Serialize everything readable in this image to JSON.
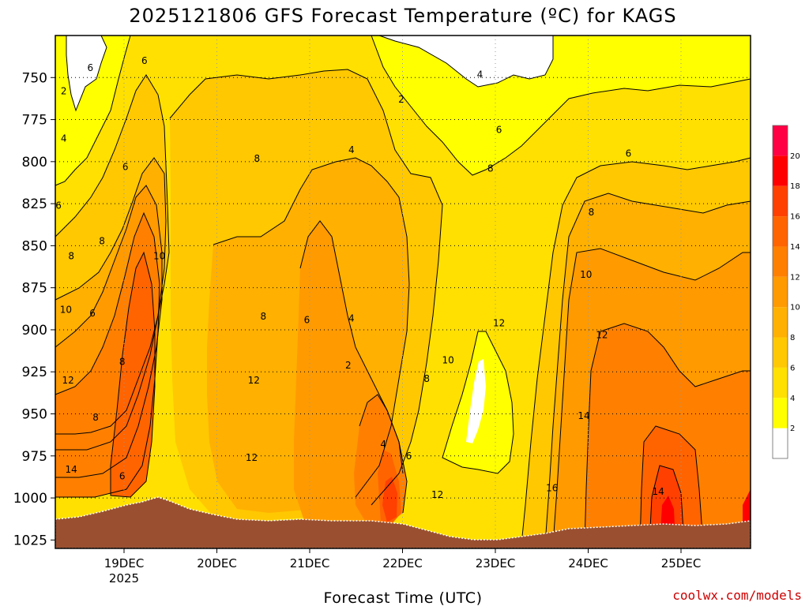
{
  "title": "2025121806 GFS Forecast Temperature (ºC) for KAGS",
  "credit": "coolwx.com/models",
  "colors": {
    "below_2": "#ffffff",
    "2_4": "#ffff00",
    "4_6": "#ffe000",
    "6_8": "#ffc800",
    "8_10": "#ffb000",
    "10_12": "#ff9a00",
    "12_14": "#ff8000",
    "14_16": "#ff6400",
    "16_18": "#ff4000",
    "18_20": "#ff0000",
    "20_plus": "#ff0044",
    "terrain": "#9a5030"
  },
  "chart_data": {
    "type": "contour",
    "title": "2025121806 GFS Forecast Temperature (ºC) for KAGS",
    "xlabel": "Forecast Time (UTC)",
    "ylabel": "",
    "x_ticks": [
      {
        "label": "19DEC",
        "sub": "2025"
      },
      {
        "label": "20DEC",
        "sub": ""
      },
      {
        "label": "21DEC",
        "sub": ""
      },
      {
        "label": "22DEC",
        "sub": ""
      },
      {
        "label": "23DEC",
        "sub": ""
      },
      {
        "label": "24DEC",
        "sub": ""
      },
      {
        "label": "25DEC",
        "sub": ""
      }
    ],
    "y_ticks": [
      "750",
      "775",
      "800",
      "825",
      "850",
      "875",
      "900",
      "925",
      "950",
      "975",
      "1000",
      "1025"
    ],
    "y_range_hpa": [
      725,
      1030
    ],
    "colorbar_ticks": [
      "2",
      "4",
      "6",
      "8",
      "10",
      "12",
      "14",
      "16",
      "18",
      "20"
    ],
    "grid": true,
    "contour_labels": [
      {
        "text": "2",
        "time": 0.08,
        "p": 760
      },
      {
        "text": "4",
        "time": 0.08,
        "p": 788
      },
      {
        "text": "6",
        "time": 0.03,
        "p": 828
      },
      {
        "text": "8",
        "time": 0.15,
        "p": 858
      },
      {
        "text": "10",
        "time": 0.1,
        "p": 890
      },
      {
        "text": "12",
        "time": 0.12,
        "p": 932
      },
      {
        "text": "14",
        "time": 0.15,
        "p": 985
      },
      {
        "text": "6",
        "time": 0.33,
        "p": 746
      },
      {
        "text": "6",
        "time": 0.35,
        "p": 892
      },
      {
        "text": "8",
        "time": 0.38,
        "p": 954
      },
      {
        "text": "8",
        "time": 0.44,
        "p": 849
      },
      {
        "text": "6",
        "time": 0.66,
        "p": 805
      },
      {
        "text": "8",
        "time": 0.63,
        "p": 921
      },
      {
        "text": "6",
        "time": 0.63,
        "p": 989
      },
      {
        "text": "6",
        "time": 0.84,
        "p": 742
      },
      {
        "text": "10",
        "time": 0.98,
        "p": 858
      },
      {
        "text": "12",
        "time": 1.85,
        "p": 978
      },
      {
        "text": "8",
        "time": 1.9,
        "p": 800
      },
      {
        "text": "8",
        "time": 1.96,
        "p": 894
      },
      {
        "text": "12",
        "time": 1.87,
        "p": 932
      },
      {
        "text": "6",
        "time": 2.37,
        "p": 896
      },
      {
        "text": "4",
        "time": 2.79,
        "p": 795
      },
      {
        "text": "2",
        "time": 3.26,
        "p": 765
      },
      {
        "text": "4",
        "time": 2.79,
        "p": 895
      },
      {
        "text": "2",
        "time": 2.76,
        "p": 923
      },
      {
        "text": "4",
        "time": 3.09,
        "p": 970
      },
      {
        "text": "6",
        "time": 3.33,
        "p": 977
      },
      {
        "text": "8",
        "time": 3.5,
        "p": 931
      },
      {
        "text": "10",
        "time": 3.7,
        "p": 920
      },
      {
        "text": "12",
        "time": 3.6,
        "p": 1000
      },
      {
        "text": "4",
        "time": 4.0,
        "p": 750
      },
      {
        "text": "6",
        "time": 4.18,
        "p": 783
      },
      {
        "text": "8",
        "time": 4.1,
        "p": 806
      },
      {
        "text": "12",
        "time": 4.18,
        "p": 898
      },
      {
        "text": "8",
        "time": 5.05,
        "p": 832
      },
      {
        "text": "10",
        "time": 5.0,
        "p": 869
      },
      {
        "text": "12",
        "time": 5.15,
        "p": 905
      },
      {
        "text": "14",
        "time": 4.98,
        "p": 953
      },
      {
        "text": "16",
        "time": 4.68,
        "p": 996
      },
      {
        "text": "14",
        "time": 5.68,
        "p": 998
      },
      {
        "text": "6",
        "time": 5.4,
        "p": 797
      }
    ]
  }
}
